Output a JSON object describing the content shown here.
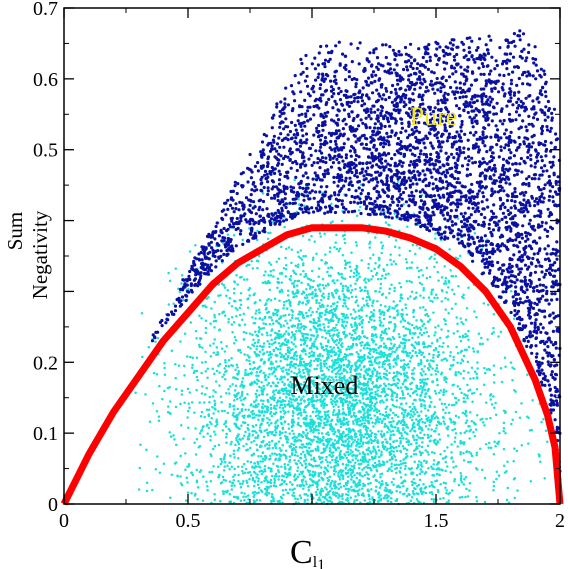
{
  "chart_data": {
    "type": "scatter",
    "title": "",
    "xlabel": "C",
    "xlabel_subscript": "l",
    "xlabel_subsubscript": "1",
    "ylabel_lines": [
      "Sum",
      "Negativity"
    ],
    "xlim": [
      0,
      2
    ],
    "ylim": [
      0,
      0.7
    ],
    "x_ticks": [
      {
        "value": 0,
        "label": "0"
      },
      {
        "value": 0.5,
        "label": "0.5"
      },
      {
        "value": 1,
        "label": ""
      },
      {
        "value": 1.5,
        "label": "1.5"
      },
      {
        "value": 2,
        "label": "2"
      }
    ],
    "y_ticks": [
      {
        "value": 0,
        "label": "0"
      },
      {
        "value": 0.1,
        "label": "0.1"
      },
      {
        "value": 0.2,
        "label": "0.2"
      },
      {
        "value": 0.3,
        "label": ""
      },
      {
        "value": 0.4,
        "label": ""
      },
      {
        "value": 0.5,
        "label": "0.5"
      },
      {
        "value": 0.6,
        "label": "0.6"
      },
      {
        "value": 0.7,
        "label": "0.7"
      }
    ],
    "grid": false,
    "colors": {
      "mixed_points": "#19E0D8",
      "pure_points": "#0A10A0",
      "boundary_curve": "#FF0000",
      "pure_label": "#F2E81A",
      "mixed_label": "#000000"
    },
    "series": [
      {
        "type": "scatter",
        "region": "mixed",
        "x_range": [
          0.3,
          1.95
        ],
        "y_range": [
          0,
          0.45
        ],
        "density_center": [
          1.1,
          0.18
        ]
      },
      {
        "type": "scatter",
        "region": "pure",
        "x_range": [
          0.35,
          2.0
        ],
        "y_range": [
          0.2,
          0.67
        ],
        "density_center": [
          1.6,
          0.55
        ]
      },
      {
        "type": "line",
        "region": "boundary",
        "x": [
          0,
          0.1,
          0.2,
          0.3,
          0.4,
          0.5,
          0.6,
          0.7,
          0.8,
          0.9,
          1.0,
          1.1,
          1.2,
          1.3,
          1.4,
          1.5,
          1.6,
          1.7,
          1.8,
          1.9,
          1.95,
          1.98,
          2.0
        ],
        "y": [
          0,
          0.07,
          0.13,
          0.18,
          0.23,
          0.27,
          0.31,
          0.34,
          0.36,
          0.38,
          0.39,
          0.39,
          0.39,
          0.385,
          0.375,
          0.36,
          0.335,
          0.3,
          0.25,
          0.175,
          0.125,
          0.08,
          0
        ]
      }
    ],
    "annotations": [
      {
        "text": "Pure",
        "x": 1.49,
        "y": 0.535,
        "color": "#F2E81A"
      },
      {
        "text": "Mixed",
        "x": 1.05,
        "y": 0.155,
        "color": "#000000"
      }
    ]
  }
}
